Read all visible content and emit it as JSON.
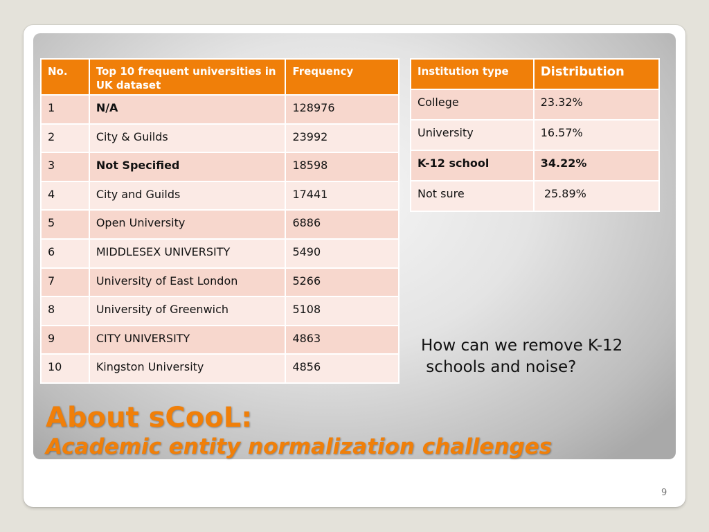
{
  "uk_table": {
    "headers": [
      "No.",
      "Top 10 frequent universities in UK dataset",
      "Frequency"
    ],
    "rows": [
      {
        "no": "1",
        "name": "N/A",
        "freq": "128976"
      },
      {
        "no": "2",
        "name": "City & Guilds",
        "freq": "23992"
      },
      {
        "no": "3",
        "name": "Not Specified",
        "freq": "18598"
      },
      {
        "no": "4",
        "name": "City and Guilds",
        "freq": "17441"
      },
      {
        "no": "5",
        "name": "Open University",
        "freq": "6886"
      },
      {
        "no": "6",
        "name": "MIDDLESEX UNIVERSITY",
        "freq": "5490"
      },
      {
        "no": "7",
        "name": "University of East London",
        "freq": "5266"
      },
      {
        "no": "8",
        "name": "University of Greenwich",
        "freq": "5108"
      },
      {
        "no": "9",
        "name": "CITY UNIVERSITY",
        "freq": "4863"
      },
      {
        "no": "10",
        "name": "Kingston University",
        "freq": "4856"
      }
    ]
  },
  "institution_table": {
    "headers": [
      "Institution type",
      "Distribution"
    ],
    "rows": [
      {
        "type": "College",
        "dist": "23.32%"
      },
      {
        "type": "University",
        "dist": "16.57%"
      },
      {
        "type": "K-12 school",
        "dist": "34.22%"
      },
      {
        "type": "Not sure",
        "dist": " 25.89%"
      }
    ]
  },
  "question": {
    "line1": "How can we remove K-12",
    "line2": " schools and noise?"
  },
  "title": {
    "main": "About sCooL:",
    "sub": "Academic entity normalization challenges"
  },
  "page_number": "9",
  "colors": {
    "header_orange": "#f07f09",
    "row_odd": "#f7d7cd",
    "row_even": "#fbeae5",
    "title_orange": "#f07f09"
  }
}
